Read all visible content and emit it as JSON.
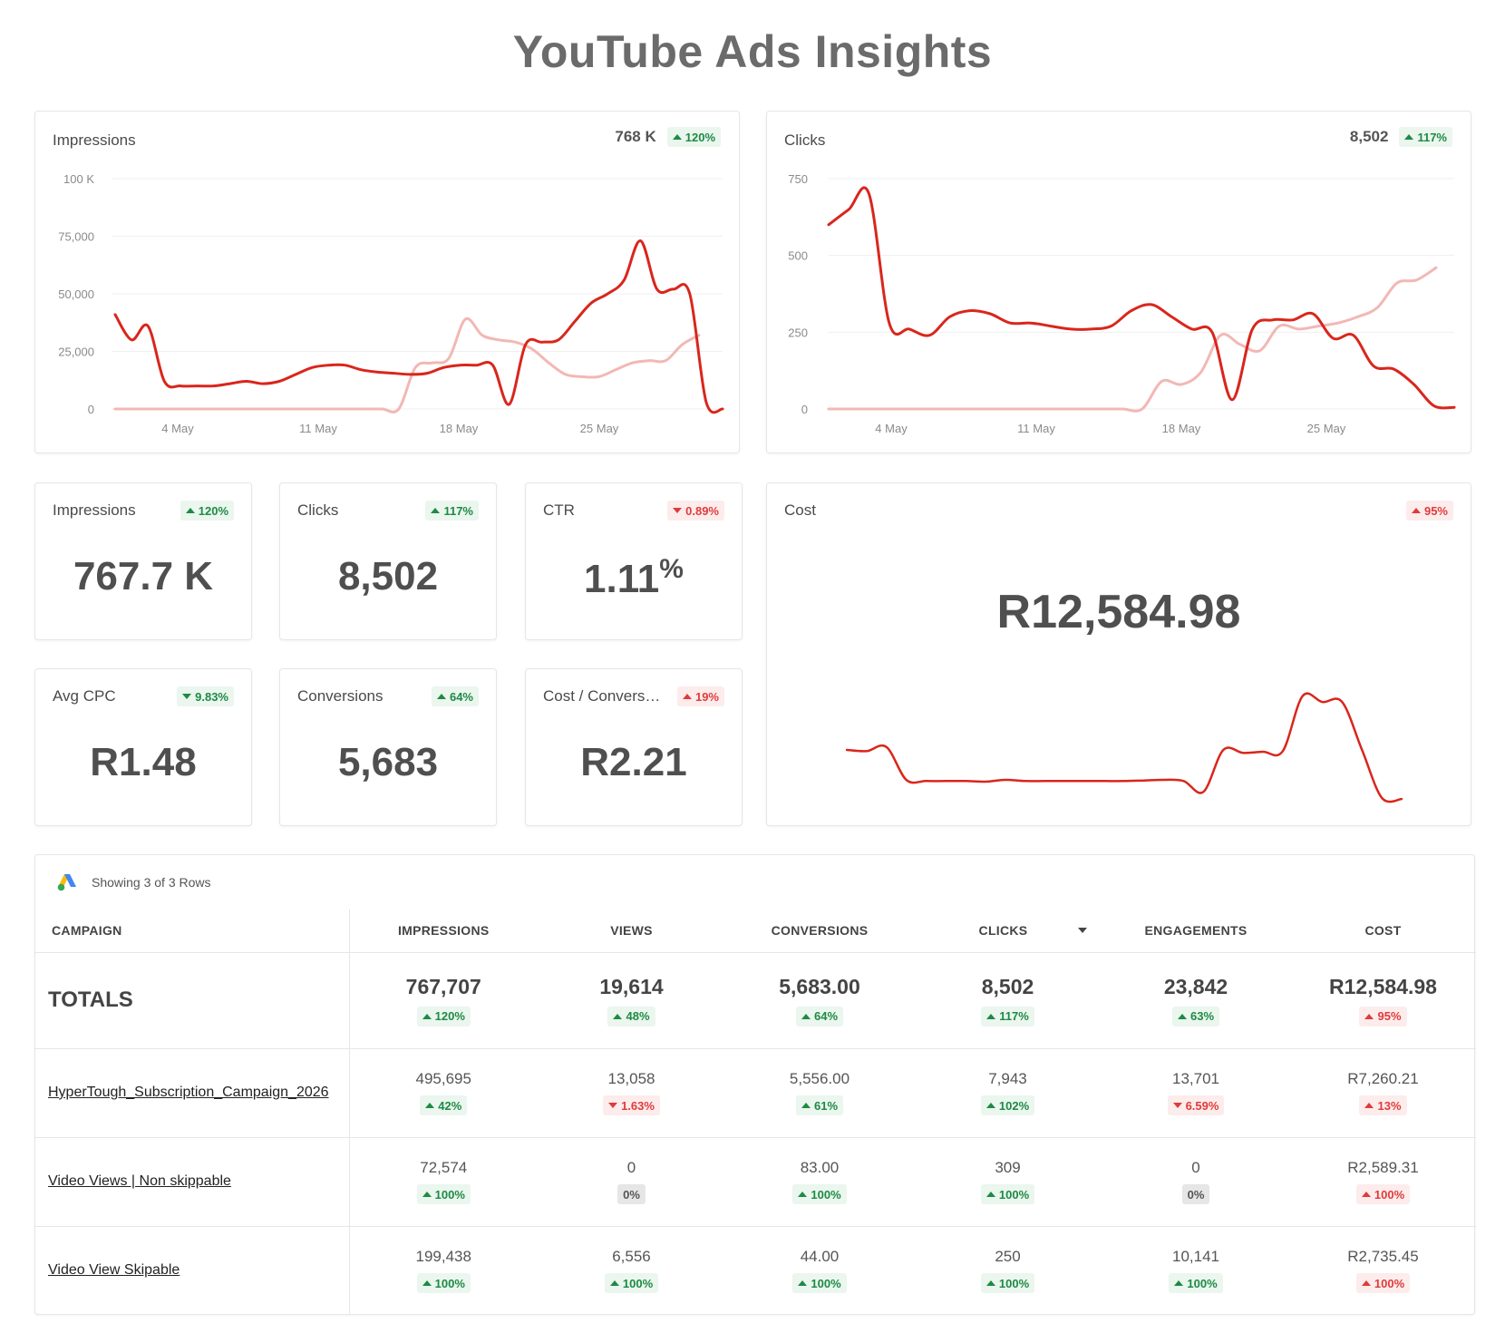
{
  "title": "YouTube Ads Insights",
  "colors": {
    "primary_line": "#d9261c",
    "comparison_line": "#f2b8b4",
    "good": "#1e8a44",
    "bad": "#e03b3b"
  },
  "impressions_chart": {
    "title": "Impressions",
    "total": "768 K",
    "change": "120%",
    "change_dir": "up-good"
  },
  "clicks_chart": {
    "title": "Clicks",
    "total": "8,502",
    "change": "117%",
    "change_dir": "up-good"
  },
  "chart_data": [
    {
      "type": "line",
      "title": "Impressions",
      "x_ticks": [
        "4 May",
        "11 May",
        "18 May",
        "25 May"
      ],
      "y_ticks": [
        "0",
        "25,000",
        "50,000",
        "75,000",
        "100 K"
      ],
      "ylim": [
        0,
        100000
      ],
      "grid": true,
      "series": [
        {
          "values": [
            41000,
            30000,
            36000,
            12000,
            10000,
            10000,
            10000,
            11000,
            12000,
            11000,
            12000,
            15000,
            18000,
            19000,
            19000,
            17000,
            16000,
            15500,
            15000,
            15500,
            18000,
            19000,
            19000,
            19000,
            2000,
            28000,
            29000,
            30000,
            38000,
            46000,
            50000,
            56000,
            73000,
            52000,
            52000,
            50000,
            3000,
            0
          ]
        },
        {
          "values": [
            0,
            0,
            0,
            0,
            0,
            0,
            0,
            0,
            0,
            0,
            0,
            0,
            0,
            0,
            0,
            0,
            0,
            0,
            18000,
            20000,
            22000,
            39000,
            32000,
            30000,
            29000,
            26000,
            20000,
            15000,
            14000,
            14000,
            17000,
            20000,
            21000,
            21000,
            28000,
            32000
          ]
        }
      ]
    },
    {
      "type": "line",
      "title": "Clicks",
      "x_ticks": [
        "4 May",
        "11 May",
        "18 May",
        "25 May"
      ],
      "y_ticks": [
        "0",
        "250",
        "500",
        "750"
      ],
      "ylim": [
        0,
        750
      ],
      "grid": true,
      "series": [
        {
          "values": [
            600,
            650,
            700,
            280,
            260,
            240,
            300,
            320,
            310,
            280,
            280,
            270,
            260,
            260,
            270,
            320,
            340,
            300,
            260,
            250,
            30,
            260,
            290,
            290,
            310,
            230,
            240,
            140,
            130,
            80,
            10,
            5
          ]
        },
        {
          "values": [
            0,
            0,
            0,
            0,
            0,
            0,
            0,
            0,
            0,
            0,
            0,
            0,
            0,
            0,
            0,
            0,
            0,
            90,
            80,
            120,
            240,
            210,
            190,
            270,
            260,
            270,
            280,
            300,
            330,
            410,
            420,
            460
          ]
        }
      ]
    },
    {
      "type": "line",
      "title": "Cost",
      "series": [
        {
          "values": [
            100,
            98,
            105,
            50,
            48,
            48,
            48,
            47,
            50,
            48,
            48,
            48,
            48,
            48,
            48,
            49,
            50,
            48,
            30,
            100,
            95,
            97,
            98,
            190,
            180,
            180,
            100,
            20,
            18
          ]
        }
      ]
    }
  ],
  "kpis": {
    "impressions": {
      "label": "Impressions",
      "value": "767.7 K",
      "change": "120%",
      "dir": "up-good"
    },
    "clicks": {
      "label": "Clicks",
      "value": "8,502",
      "change": "117%",
      "dir": "up-good"
    },
    "ctr": {
      "label": "CTR",
      "value": "1.11",
      "unit": "%",
      "change": "0.89%",
      "dir": "down-bad"
    },
    "avg_cpc": {
      "label": "Avg CPC",
      "value": "R1.48",
      "change": "9.83%",
      "dir": "down-good"
    },
    "conversions": {
      "label": "Conversions",
      "value": "5,683",
      "change": "64%",
      "dir": "up-good"
    },
    "cost_per_conv": {
      "label": "Cost / Convers…",
      "value": "R2.21",
      "change": "19%",
      "dir": "up-bad"
    },
    "cost": {
      "label": "Cost",
      "value": "R12,584.98",
      "change": "95%",
      "dir": "up-bad"
    }
  },
  "table": {
    "info": "Showing 3 of 3 Rows",
    "headers": [
      "CAMPAIGN",
      "IMPRESSIONS",
      "VIEWS",
      "CONVERSIONS",
      "CLICKS",
      "ENGAGEMENTS",
      "COST"
    ],
    "totals": {
      "label": "TOTALS",
      "cells": [
        {
          "value": "767,707",
          "change": "120%",
          "dir": "up-good"
        },
        {
          "value": "19,614",
          "change": "48%",
          "dir": "up-good"
        },
        {
          "value": "5,683.00",
          "change": "64%",
          "dir": "up-good"
        },
        {
          "value": "8,502",
          "change": "117%",
          "dir": "up-good"
        },
        {
          "value": "23,842",
          "change": "63%",
          "dir": "up-good"
        },
        {
          "value": "R12,584.98",
          "change": "95%",
          "dir": "up-bad"
        }
      ]
    },
    "rows": [
      {
        "campaign": "HyperTough_Subscription_Campaign_2026",
        "cells": [
          {
            "value": "495,695",
            "change": "42%",
            "dir": "up-good"
          },
          {
            "value": "13,058",
            "change": "1.63%",
            "dir": "down-bad"
          },
          {
            "value": "5,556.00",
            "change": "61%",
            "dir": "up-good"
          },
          {
            "value": "7,943",
            "change": "102%",
            "dir": "up-good"
          },
          {
            "value": "13,701",
            "change": "6.59%",
            "dir": "down-bad"
          },
          {
            "value": "R7,260.21",
            "change": "13%",
            "dir": "up-bad"
          }
        ]
      },
      {
        "campaign": "Video Views | Non skippable",
        "cells": [
          {
            "value": "72,574",
            "change": "100%",
            "dir": "up-good"
          },
          {
            "value": "0",
            "change": "0%",
            "dir": "neutral"
          },
          {
            "value": "83.00",
            "change": "100%",
            "dir": "up-good"
          },
          {
            "value": "309",
            "change": "100%",
            "dir": "up-good"
          },
          {
            "value": "0",
            "change": "0%",
            "dir": "neutral"
          },
          {
            "value": "R2,589.31",
            "change": "100%",
            "dir": "up-bad"
          }
        ]
      },
      {
        "campaign": "Video View Skipable",
        "cells": [
          {
            "value": "199,438",
            "change": "100%",
            "dir": "up-good"
          },
          {
            "value": "6,556",
            "change": "100%",
            "dir": "up-good"
          },
          {
            "value": "44.00",
            "change": "100%",
            "dir": "up-good"
          },
          {
            "value": "250",
            "change": "100%",
            "dir": "up-good"
          },
          {
            "value": "10,141",
            "change": "100%",
            "dir": "up-good"
          },
          {
            "value": "R2,735.45",
            "change": "100%",
            "dir": "up-bad"
          }
        ]
      }
    ]
  }
}
